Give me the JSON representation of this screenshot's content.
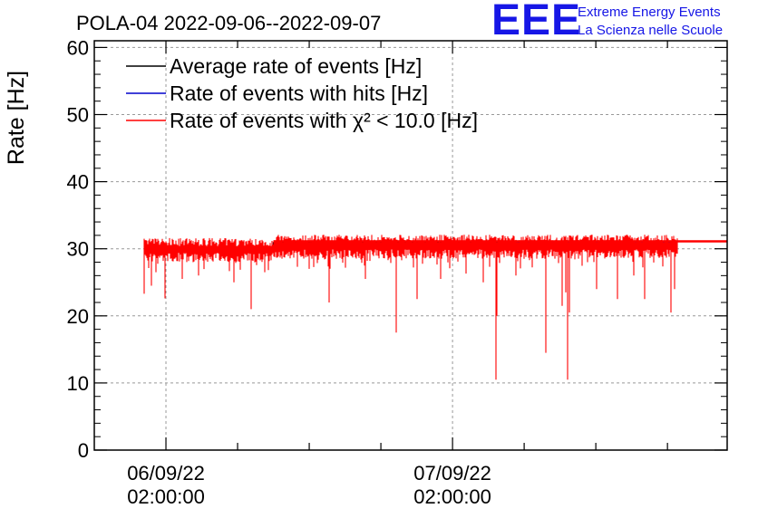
{
  "chart_data": {
    "type": "line",
    "title": "POLA-04 2022-09-06--2022-09-07",
    "ylabel": "Rate [Hz]",
    "xlabel": "",
    "ylim": [
      0,
      61
    ],
    "yticks": [
      0,
      10,
      20,
      30,
      40,
      50,
      60
    ],
    "xlim_hours": [
      0,
      53
    ],
    "xtick_labels": [
      {
        "hour": 6,
        "date": "06/09/22",
        "time": "02:00:00"
      },
      {
        "hour": 30,
        "date": "07/09/22",
        "time": "02:00:00"
      }
    ],
    "minor_tick_hours": [
      6,
      12,
      18,
      24,
      30,
      36,
      42,
      48
    ],
    "grid": true,
    "legend_position": "top-left",
    "series": [
      {
        "name": "Average rate of events [Hz]",
        "color": "#000000",
        "style": "step",
        "points": [
          [
            4.2,
            29.8
          ],
          [
            10.0,
            30.0
          ],
          [
            15.0,
            30.1
          ],
          [
            15.0,
            30.9
          ],
          [
            34.0,
            30.9
          ],
          [
            35.0,
            30.2
          ],
          [
            37.0,
            30.6
          ],
          [
            41.0,
            30.4
          ],
          [
            48.8,
            30.5
          ]
        ]
      },
      {
        "name": "Rate of events with hits [Hz]",
        "color": "#0000cc",
        "style": "step",
        "points": [
          [
            4.2,
            29.9
          ],
          [
            15.0,
            30.0
          ],
          [
            15.0,
            30.9
          ],
          [
            48.8,
            30.8
          ]
        ]
      },
      {
        "name": "Rate of events with χ² < 10.0 [Hz]",
        "color": "#ff0000",
        "style": "noisy",
        "start_hour": 4.2,
        "end_hour": 48.8,
        "mean_before": 30.0,
        "mean_after": 30.5,
        "step_hour": 15.0,
        "upper_flat_level": 31.1,
        "upper_flat_from_hour": 15.0,
        "upper_flat_to_hour": 53.0,
        "dips": [
          {
            "hour": 4.2,
            "value": 23.3
          },
          {
            "hour": 4.8,
            "value": 24.5
          },
          {
            "hour": 5.2,
            "value": 26.5
          },
          {
            "hour": 5.9,
            "value": 22.6
          },
          {
            "hour": 7.4,
            "value": 25.5
          },
          {
            "hour": 8.7,
            "value": 26.0
          },
          {
            "hour": 11.7,
            "value": 25.0
          },
          {
            "hour": 13.1,
            "value": 21.0
          },
          {
            "hour": 14.3,
            "value": 26.5
          },
          {
            "hour": 18.0,
            "value": 27.0
          },
          {
            "hour": 19.7,
            "value": 22.0
          },
          {
            "hour": 22.7,
            "value": 25.5
          },
          {
            "hour": 25.3,
            "value": 17.5
          },
          {
            "hour": 27.0,
            "value": 22.5
          },
          {
            "hour": 29.0,
            "value": 25.5
          },
          {
            "hour": 31.1,
            "value": 26.3
          },
          {
            "hour": 32.6,
            "value": 25.0
          },
          {
            "hour": 33.6,
            "value": 10.5
          },
          {
            "hour": 33.75,
            "value": 20.0
          },
          {
            "hour": 35.3,
            "value": 26.0
          },
          {
            "hour": 37.8,
            "value": 14.5
          },
          {
            "hour": 39.2,
            "value": 21.5
          },
          {
            "hour": 39.45,
            "value": 23.5
          },
          {
            "hour": 39.6,
            "value": 10.5
          },
          {
            "hour": 39.8,
            "value": 20.5
          },
          {
            "hour": 41.3,
            "value": 28.0
          },
          {
            "hour": 42.1,
            "value": 24.0
          },
          {
            "hour": 43.8,
            "value": 22.5
          },
          {
            "hour": 45.2,
            "value": 26.0
          },
          {
            "hour": 46.1,
            "value": 22.5
          },
          {
            "hour": 48.3,
            "value": 20.5
          },
          {
            "hour": 48.6,
            "value": 24.0
          }
        ]
      }
    ]
  },
  "branding": {
    "logo_text": "EEE",
    "org_line1": "Extreme Energy Events",
    "org_line2": "La Scienza nelle Scuole",
    "color": "#1616e6"
  }
}
